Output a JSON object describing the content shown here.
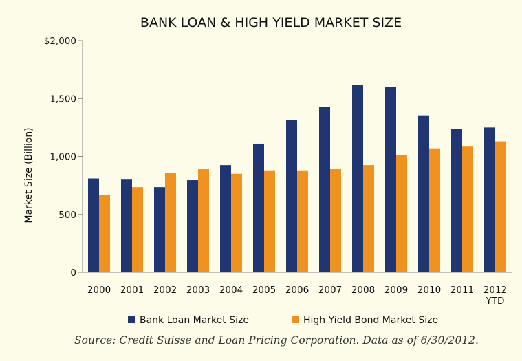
{
  "chart_data": {
    "type": "bar",
    "title": "BANK LOAN & HIGH YIELD MARKET SIZE",
    "ylabel": "Market Size (Billion)",
    "xlabel": "",
    "ylim": [
      0,
      2000
    ],
    "yticks": [
      {
        "value": 0,
        "label": "0"
      },
      {
        "value": 500,
        "label": "500"
      },
      {
        "value": 1000,
        "label": "1,000"
      },
      {
        "value": 1500,
        "label": "1,500"
      },
      {
        "value": 2000,
        "label": "$2,000"
      }
    ],
    "categories": [
      "2000",
      "2001",
      "2002",
      "2003",
      "2004",
      "2005",
      "2006",
      "2007",
      "2008",
      "2009",
      "2010",
      "2011",
      "2012 YTD"
    ],
    "series": [
      {
        "name": "Bank Loan Market Size",
        "color": "#1f3673",
        "values": [
          810,
          800,
          735,
          795,
          925,
          1110,
          1315,
          1425,
          1615,
          1600,
          1355,
          1240,
          1250
        ]
      },
      {
        "name": "High Yield Bond Market Size",
        "color": "#ef921f",
        "values": [
          670,
          735,
          860,
          890,
          850,
          880,
          880,
          890,
          925,
          1015,
          1070,
          1085,
          1130
        ]
      }
    ],
    "legend_position": "bottom",
    "grid": false
  },
  "source": "Source: Credit Suisse and Loan Pricing Corporation. Data as of 6/30/2012."
}
